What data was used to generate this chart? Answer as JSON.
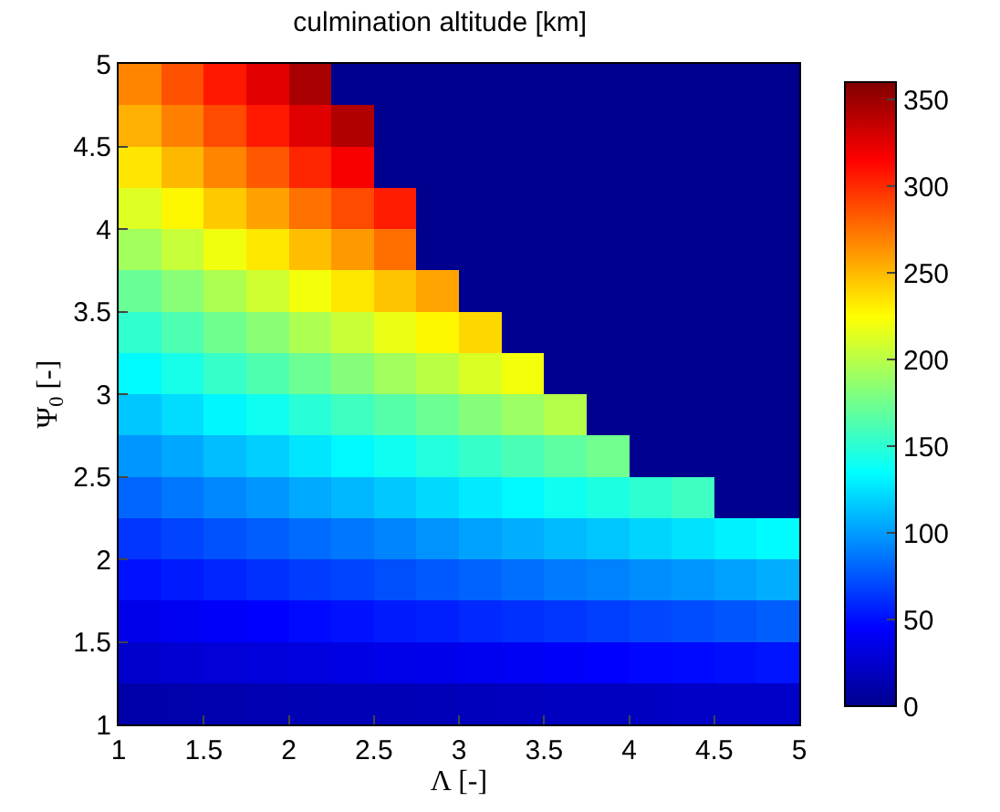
{
  "chart_data": {
    "type": "heatmap",
    "title": "culmination altitude [km]",
    "xlabel": "Λ [-]",
    "ylabel": "Ψ$_{0}$ [-]",
    "x": [
      1.125,
      1.375,
      1.625,
      1.875,
      2.125,
      2.375,
      2.625,
      2.875,
      3.125,
      3.375,
      3.625,
      3.875,
      4.125,
      4.375,
      4.625,
      4.875
    ],
    "y": [
      4.875,
      4.625,
      4.375,
      4.125,
      3.875,
      3.625,
      3.375,
      3.125,
      2.875,
      2.625,
      2.375,
      2.125,
      1.875,
      1.625,
      1.375,
      1.125
    ],
    "cells": [
      [
        268,
        286,
        307,
        325,
        346,
        0,
        0,
        0,
        0,
        0,
        0,
        0,
        0,
        0,
        0,
        0
      ],
      [
        253,
        270,
        289,
        306,
        326,
        343,
        0,
        0,
        0,
        0,
        0,
        0,
        0,
        0,
        0,
        0
      ],
      [
        234,
        250,
        268,
        284,
        302,
        317,
        0,
        0,
        0,
        0,
        0,
        0,
        0,
        0,
        0,
        0
      ],
      [
        213,
        228,
        244,
        258,
        275,
        289,
        305,
        0,
        0,
        0,
        0,
        0,
        0,
        0,
        0,
        0
      ],
      [
        192,
        205,
        220,
        233,
        248,
        261,
        276,
        0,
        0,
        0,
        0,
        0,
        0,
        0,
        0,
        0
      ],
      [
        172,
        183,
        196,
        208,
        221,
        233,
        246,
        257,
        0,
        0,
        0,
        0,
        0,
        0,
        0,
        0
      ],
      [
        152,
        162,
        174,
        184,
        196,
        206,
        218,
        228,
        239,
        0,
        0,
        0,
        0,
        0,
        0,
        0
      ],
      [
        134,
        143,
        154,
        163,
        173,
        182,
        192,
        201,
        212,
        221,
        0,
        0,
        0,
        0,
        0,
        0
      ],
      [
        115,
        123,
        132,
        140,
        149,
        157,
        165,
        173,
        182,
        190,
        199,
        0,
        0,
        0,
        0,
        0
      ],
      [
        98,
        104,
        112,
        118,
        126,
        133,
        140,
        147,
        154,
        161,
        168,
        175,
        0,
        0,
        0,
        0
      ],
      [
        81,
        87,
        93,
        98,
        105,
        110,
        116,
        122,
        128,
        133,
        140,
        145,
        151,
        157,
        0,
        0
      ],
      [
        64,
        69,
        74,
        78,
        83,
        87,
        92,
        97,
        102,
        106,
        111,
        115,
        120,
        125,
        130,
        134
      ],
      [
        51,
        54,
        58,
        62,
        66,
        69,
        73,
        76,
        80,
        84,
        88,
        91,
        95,
        98,
        102,
        106
      ],
      [
        37,
        40,
        43,
        45,
        48,
        51,
        54,
        56,
        59,
        62,
        64,
        67,
        70,
        72,
        75,
        78
      ],
      [
        25,
        27,
        29,
        30,
        32,
        34,
        36,
        37,
        39,
        41,
        43,
        45,
        47,
        48,
        50,
        52
      ],
      [
        11,
        12,
        13,
        14,
        15,
        16,
        16,
        17,
        18,
        19,
        20,
        20,
        21,
        22,
        23,
        24
      ]
    ],
    "xlim": [
      1,
      5
    ],
    "ylim": [
      1,
      5
    ],
    "xticks": [
      1,
      1.5,
      2,
      2.5,
      3,
      3.5,
      4,
      4.5,
      5
    ],
    "yticks": [
      1,
      1.5,
      2,
      2.5,
      3,
      3.5,
      4,
      4.5,
      5
    ],
    "clim": [
      0,
      360
    ],
    "cticks": [
      0,
      50,
      100,
      150,
      200,
      250,
      300,
      350
    ]
  }
}
